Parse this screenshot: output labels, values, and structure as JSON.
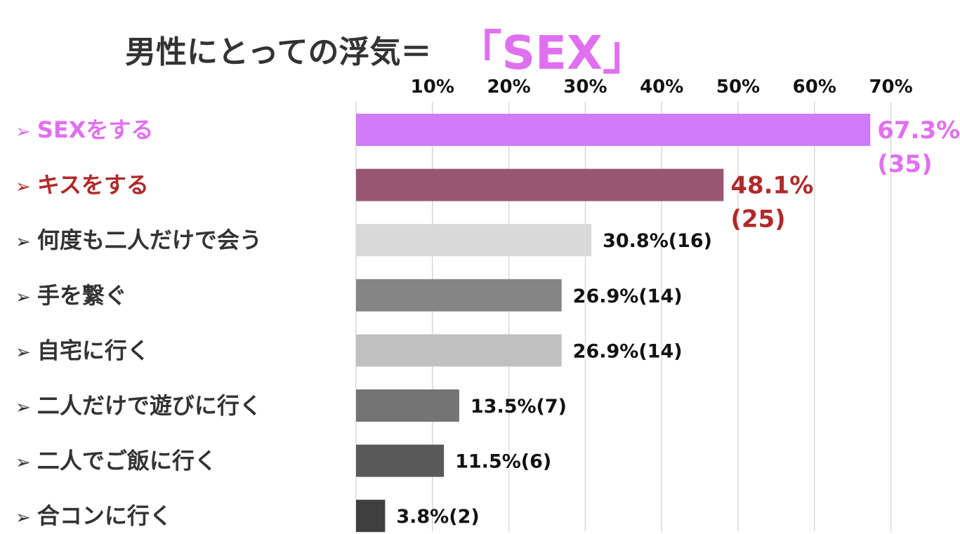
{
  "title": {
    "main": "男性にとっての浮気＝",
    "accent": "「SEX」"
  },
  "colors": {
    "accent": "#e070f0",
    "second": "#b02a2a",
    "grid": "#d9d9d9",
    "text": "#333333"
  },
  "chart_data": {
    "type": "bar",
    "orientation": "horizontal",
    "x_ticks": [
      "10%",
      "20%",
      "30%",
      "40%",
      "50%",
      "60%",
      "70%"
    ],
    "xlim": [
      0,
      70
    ],
    "categories": [
      "SEXをする",
      "キスをする",
      "何度も二人だけで会う",
      "手を繋ぐ",
      "自宅に行く",
      "二人だけで遊びに行く",
      "二人でご飯に行く",
      "合コンに行く"
    ],
    "values": [
      67.3,
      48.1,
      30.8,
      26.9,
      26.9,
      13.5,
      11.5,
      3.8
    ],
    "counts": [
      35,
      25,
      16,
      14,
      14,
      7,
      6,
      2
    ],
    "value_labels": [
      [
        "67.3%",
        "(35)"
      ],
      [
        "48.1%",
        "(25)"
      ],
      [
        "30.8%(16)"
      ],
      [
        "26.9%(14)"
      ],
      [
        "26.9%(14)"
      ],
      [
        "13.5%(7)"
      ],
      [
        "11.5%(6)"
      ],
      [
        "3.8%(2)"
      ]
    ],
    "bar_colors": [
      "#d07cf8",
      "#985672",
      "#d9d9d9",
      "#858585",
      "#c0c0c0",
      "#747474",
      "#595959",
      "#3f3f3f"
    ],
    "category_colors": [
      "#e070f0",
      "#b02a2a",
      "#333333",
      "#333333",
      "#333333",
      "#333333",
      "#333333",
      "#333333"
    ],
    "value_label_colors": [
      "#e070f0",
      "#b02a2a",
      "#111111",
      "#111111",
      "#111111",
      "#111111",
      "#111111",
      "#111111"
    ],
    "grid": true,
    "bullet": "➢"
  }
}
